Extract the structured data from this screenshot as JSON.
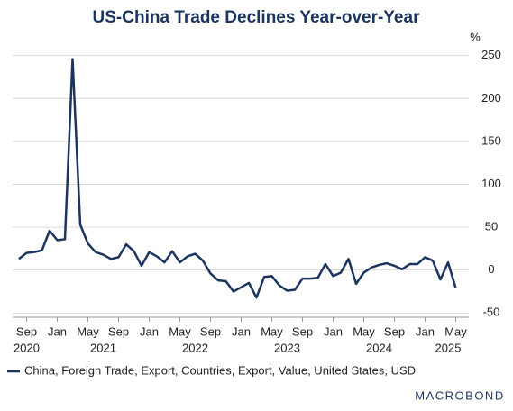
{
  "chart_data": {
    "type": "line",
    "title": "US-China Trade Declines Year-over-Year",
    "y_unit": "%",
    "x": [
      "2020-08",
      "2020-09",
      "2020-10",
      "2020-11",
      "2020-12",
      "2021-01",
      "2021-02",
      "2021-03",
      "2021-04",
      "2021-05",
      "2021-06",
      "2021-07",
      "2021-08",
      "2021-09",
      "2021-10",
      "2021-11",
      "2021-12",
      "2022-01",
      "2022-02",
      "2022-03",
      "2022-04",
      "2022-05",
      "2022-06",
      "2022-07",
      "2022-08",
      "2022-09",
      "2022-10",
      "2022-11",
      "2022-12",
      "2023-01",
      "2023-02",
      "2023-03",
      "2023-04",
      "2023-05",
      "2023-06",
      "2023-07",
      "2023-08",
      "2023-09",
      "2023-10",
      "2023-11",
      "2023-12",
      "2024-01",
      "2024-02",
      "2024-03",
      "2024-04",
      "2024-05",
      "2024-06",
      "2024-07",
      "2024-08",
      "2024-09",
      "2024-10",
      "2024-11",
      "2024-12",
      "2025-01",
      "2025-02",
      "2025-03",
      "2025-04",
      "2025-05"
    ],
    "series": [
      {
        "name": "China, Foreign Trade, Export, Countries, Export, Value, United States, USD",
        "color": "#1c355e",
        "values": [
          13,
          20,
          21,
          23,
          46,
          35,
          36,
          246,
          53,
          31,
          21,
          18,
          13,
          15,
          30,
          22,
          5,
          21,
          16,
          9,
          22,
          9,
          16,
          19,
          11,
          -4,
          -12,
          -13,
          -25,
          -20,
          -15,
          -32,
          -8,
          -7,
          -18,
          -24,
          -23,
          -10,
          -10,
          -9,
          7,
          -7,
          -3,
          13,
          -16,
          -3,
          3,
          6,
          8,
          5,
          1,
          7,
          7,
          15,
          11,
          -11,
          9,
          -21
        ]
      }
    ],
    "ylim": [
      -55,
      255
    ],
    "yticks": [
      -50,
      0,
      50,
      100,
      150,
      200,
      250
    ],
    "xticks": [
      {
        "value": "2020-09",
        "label": "Sep"
      },
      {
        "value": "2021-01",
        "label": "Jan"
      },
      {
        "value": "2021-05",
        "label": "May"
      },
      {
        "value": "2021-09",
        "label": "Sep"
      },
      {
        "value": "2022-01",
        "label": "Jan"
      },
      {
        "value": "2022-05",
        "label": "May"
      },
      {
        "value": "2022-09",
        "label": "Sep"
      },
      {
        "value": "2023-01",
        "label": "Jan"
      },
      {
        "value": "2023-05",
        "label": "May"
      },
      {
        "value": "2023-09",
        "label": "Sep"
      },
      {
        "value": "2024-01",
        "label": "Jan"
      },
      {
        "value": "2024-05",
        "label": "May"
      },
      {
        "value": "2024-09",
        "label": "Sep"
      },
      {
        "value": "2025-01",
        "label": "Jan"
      },
      {
        "value": "2025-05",
        "label": "May"
      }
    ],
    "year_labels": [
      {
        "value": "2020-09",
        "label": "2020"
      },
      {
        "value": "2021-07",
        "label": "2021"
      },
      {
        "value": "2022-07",
        "label": "2022"
      },
      {
        "value": "2023-07",
        "label": "2023"
      },
      {
        "value": "2024-07",
        "label": "2024"
      },
      {
        "value": "2025-04",
        "label": "2025"
      }
    ],
    "grid": true,
    "source_logo": "MACROBOND"
  }
}
